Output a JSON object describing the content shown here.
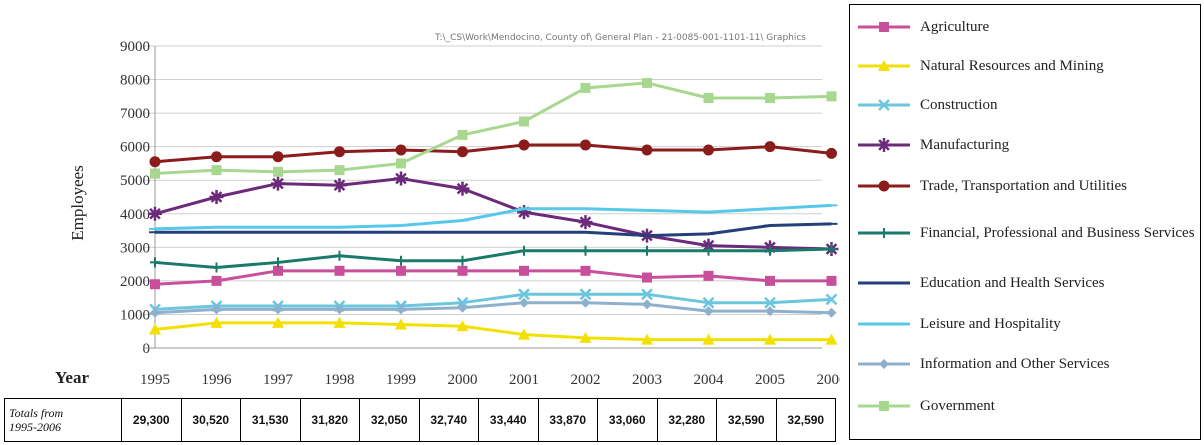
{
  "chart_data": {
    "type": "line",
    "ylabel": "Employees",
    "ylim": [
      0,
      9000
    ],
    "yticks": [
      "0",
      "1000",
      "2000",
      "3000",
      "4000",
      "5000",
      "6000",
      "7000",
      "8000",
      "9000"
    ],
    "x_axis_title": "Year",
    "x": [
      "1995",
      "1996",
      "1997",
      "1998",
      "1999",
      "2000",
      "2001",
      "2002",
      "2003",
      "2004",
      "2005",
      "2006"
    ],
    "source_path": "T:\\_CS\\Work\\Mendocino, County of\\ General Plan - 21-0085-001-1101-11\\ Graphics",
    "grid": "horizontal",
    "legend_placement": "right",
    "series": [
      {
        "name": "Agriculture",
        "color": "#c8509a",
        "marker": "square",
        "values": [
          1900,
          2000,
          2300,
          2300,
          2300,
          2300,
          2300,
          2300,
          2100,
          2150,
          2000,
          2000
        ]
      },
      {
        "name": "Natural Resources and Mining",
        "color": "#f2e100",
        "marker": "triangle",
        "values": [
          550,
          750,
          750,
          750,
          700,
          650,
          400,
          300,
          250,
          250,
          250,
          250
        ]
      },
      {
        "name": "Construction",
        "color": "#6cc6dd",
        "marker": "x",
        "values": [
          1150,
          1250,
          1250,
          1250,
          1250,
          1350,
          1600,
          1600,
          1600,
          1350,
          1350,
          1450
        ]
      },
      {
        "name": "Manufacturing",
        "color": "#6b2a7a",
        "marker": "asterisk",
        "values": [
          4000,
          4500,
          4900,
          4850,
          5050,
          4750,
          4050,
          3750,
          3350,
          3050,
          3000,
          2950
        ]
      },
      {
        "name": "Trade, Transportation and Utilities",
        "color": "#8a1c1c",
        "marker": "circle",
        "values": [
          5550,
          5700,
          5700,
          5850,
          5900,
          5850,
          6050,
          6050,
          5900,
          5900,
          6000,
          5800
        ]
      },
      {
        "name": "Financial, Professional and Business Services",
        "color": "#1a7a6a",
        "marker": "plus",
        "values": [
          2550,
          2400,
          2550,
          2750,
          2600,
          2600,
          2900,
          2900,
          2900,
          2900,
          2900,
          2950
        ]
      },
      {
        "name": "Education and Health Services",
        "color": "#243f7a",
        "marker": "dash",
        "values": [
          3450,
          3450,
          3450,
          3450,
          3450,
          3450,
          3450,
          3450,
          3350,
          3400,
          3650,
          3700
        ]
      },
      {
        "name": "Leisure and Hospitality",
        "color": "#56c8ea",
        "marker": "dash",
        "values": [
          3550,
          3600,
          3600,
          3600,
          3650,
          3800,
          4150,
          4150,
          4100,
          4050,
          4150,
          4250
        ]
      },
      {
        "name": "Information and Other Services",
        "color": "#8fb0cc",
        "marker": "diamond",
        "values": [
          1050,
          1150,
          1150,
          1150,
          1150,
          1200,
          1350,
          1350,
          1300,
          1100,
          1100,
          1050
        ]
      },
      {
        "name": "Government",
        "color": "#a8d890",
        "marker": "square",
        "values": [
          5200,
          5300,
          5250,
          5300,
          5500,
          6350,
          6750,
          7750,
          7900,
          7450,
          7450,
          7500
        ]
      }
    ]
  },
  "totals_row": {
    "label": "Totals from 1995-2006",
    "label_line1": "Totals from",
    "label_line2": "1995-2006",
    "values": [
      "29,300",
      "30,520",
      "31,530",
      "31,820",
      "32,050",
      "32,740",
      "33,440",
      "33,870",
      "33,060",
      "32,280",
      "32,590",
      "32,590"
    ]
  }
}
